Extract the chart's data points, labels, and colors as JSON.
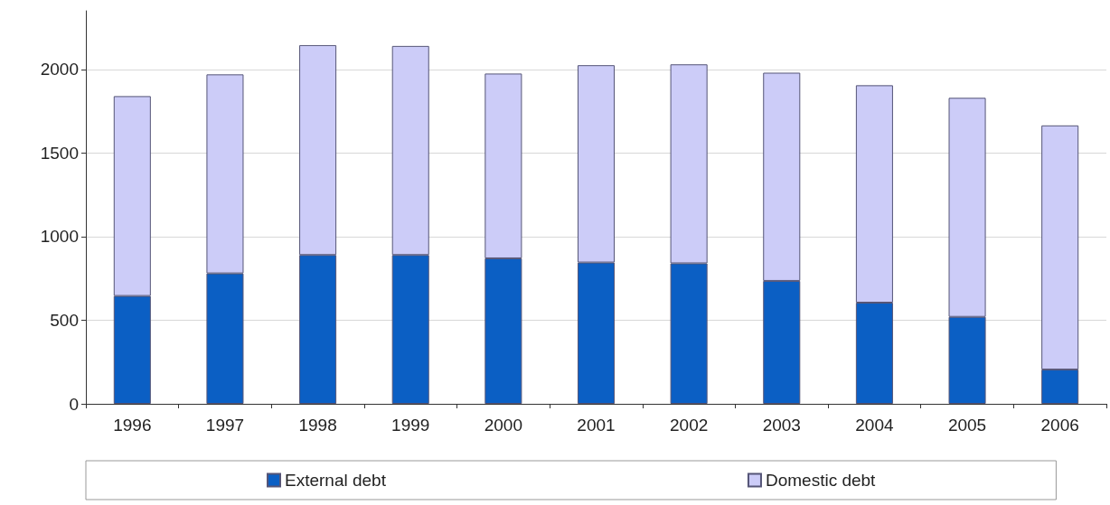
{
  "chart_data": {
    "type": "bar",
    "stacked": true,
    "categories": [
      "1996",
      "1997",
      "1998",
      "1999",
      "2000",
      "2001",
      "2002",
      "2003",
      "2004",
      "2005",
      "2006"
    ],
    "series": [
      {
        "name": "External debt",
        "color": "#0b5fc4",
        "values": [
          645,
          780,
          890,
          890,
          870,
          845,
          840,
          735,
          605,
          520,
          205
        ]
      },
      {
        "name": "Domestic debt",
        "color": "#ccccf8",
        "values": [
          1195,
          1190,
          1255,
          1250,
          1105,
          1180,
          1190,
          1245,
          1300,
          1310,
          1460
        ]
      }
    ],
    "ylim": [
      0,
      2350
    ],
    "yticks": [
      0,
      500,
      1000,
      1500,
      2000
    ],
    "grid": "y",
    "legend": "bottom"
  }
}
